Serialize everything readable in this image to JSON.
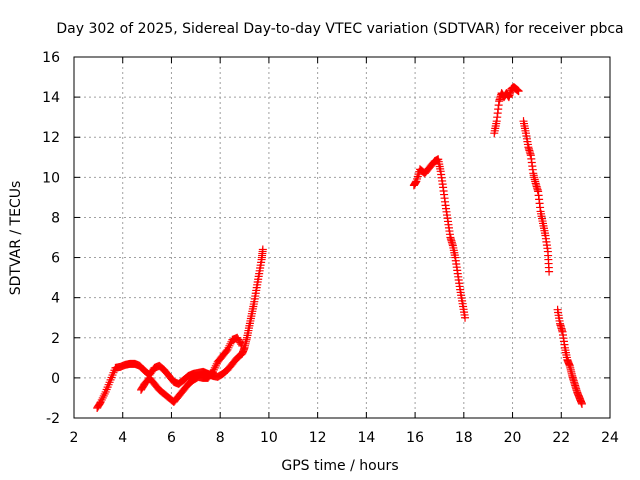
{
  "chart_data": {
    "type": "scatter",
    "title": "Day 302 of 2025, Sidereal Day-to-day VTEC variation (SDTVAR) for receiver pbca",
    "xlabel": "GPS time / hours",
    "ylabel": "SDTVAR / TECUs",
    "xlim": [
      2,
      24
    ],
    "ylim": [
      -2,
      16
    ],
    "xticks": [
      2,
      4,
      6,
      8,
      10,
      12,
      14,
      16,
      18,
      20,
      22,
      24
    ],
    "yticks": [
      -2,
      0,
      2,
      4,
      6,
      8,
      10,
      12,
      14,
      16
    ],
    "grid": true,
    "marker": "+",
    "color": "#ff0000",
    "series": [
      {
        "name": "arc-1",
        "x": [
          2.95,
          3.1,
          3.3,
          3.5,
          3.7,
          3.9,
          4.1,
          4.3,
          4.5,
          4.7,
          4.9,
          5.1,
          5.3,
          5.5,
          5.7,
          5.9,
          6.1,
          6.3,
          6.5,
          6.7,
          6.9,
          7.1,
          7.3,
          7.5,
          7.7,
          7.9,
          8.1,
          8.3,
          8.5,
          8.7,
          8.9,
          9.0,
          9.1,
          9.2,
          9.3,
          9.4,
          9.5,
          9.6,
          9.7,
          9.75
        ],
        "y": [
          -1.5,
          -1.2,
          -0.7,
          -0.1,
          0.5,
          0.55,
          0.65,
          0.7,
          0.7,
          0.6,
          0.35,
          0.15,
          0.5,
          0.6,
          0.4,
          0.1,
          -0.2,
          -0.3,
          -0.1,
          0.1,
          0.2,
          0.25,
          0.3,
          0.2,
          0.1,
          0.05,
          0.2,
          0.4,
          0.7,
          1.0,
          1.2,
          1.5,
          2.0,
          2.6,
          3.2,
          3.8,
          4.5,
          5.2,
          5.9,
          6.4
        ]
      },
      {
        "name": "arc-2",
        "x": [
          4.75,
          4.9,
          5.1,
          5.3,
          5.5,
          5.7,
          5.9,
          6.1,
          6.3,
          6.5,
          6.7,
          6.9,
          7.1,
          7.3,
          7.5,
          7.7,
          7.9,
          8.1,
          8.3,
          8.5,
          8.7,
          8.9
        ],
        "y": [
          -0.6,
          -0.3,
          0.0,
          -0.3,
          -0.6,
          -0.8,
          -1.0,
          -1.2,
          -0.9,
          -0.6,
          -0.3,
          -0.1,
          0.05,
          0.0,
          0.0,
          0.3,
          0.8,
          1.1,
          1.4,
          1.9,
          2.0,
          1.6
        ]
      },
      {
        "name": "arc-3",
        "x": [
          15.95,
          16.05,
          16.2,
          16.4,
          16.6,
          16.8,
          16.95,
          17.05,
          17.15,
          17.25,
          17.35,
          17.45,
          17.55,
          17.65,
          17.75,
          17.85,
          17.95,
          18.05
        ],
        "y": [
          9.6,
          9.8,
          10.4,
          10.2,
          10.5,
          10.8,
          10.9,
          10.3,
          9.5,
          8.6,
          7.8,
          7.0,
          6.6,
          6.0,
          5.2,
          4.4,
          3.7,
          3.0
        ]
      },
      {
        "name": "arc-4",
        "x": [
          19.25,
          19.35,
          19.45,
          19.55,
          19.65,
          19.75,
          19.85,
          19.95,
          20.05,
          20.15,
          20.25
        ],
        "y": [
          12.2,
          12.8,
          13.8,
          14.2,
          14.0,
          14.2,
          14.0,
          14.4,
          14.5,
          14.4,
          14.3
        ]
      },
      {
        "name": "arc-5",
        "x": [
          20.45,
          20.55,
          20.65,
          20.75,
          20.85,
          20.95,
          21.05,
          21.15,
          21.25,
          21.35,
          21.45,
          21.5
        ],
        "y": [
          12.8,
          12.2,
          11.5,
          11.1,
          10.2,
          9.7,
          9.3,
          8.3,
          7.7,
          7.1,
          6.3,
          5.3
        ]
      },
      {
        "name": "arc-6",
        "x": [
          21.85,
          21.95,
          22.05,
          22.15,
          22.25,
          22.35,
          22.45,
          22.55,
          22.65,
          22.75,
          22.85
        ],
        "y": [
          3.4,
          2.7,
          2.3,
          1.5,
          0.9,
          0.6,
          0.1,
          -0.3,
          -0.7,
          -1.0,
          -1.3
        ]
      }
    ]
  }
}
